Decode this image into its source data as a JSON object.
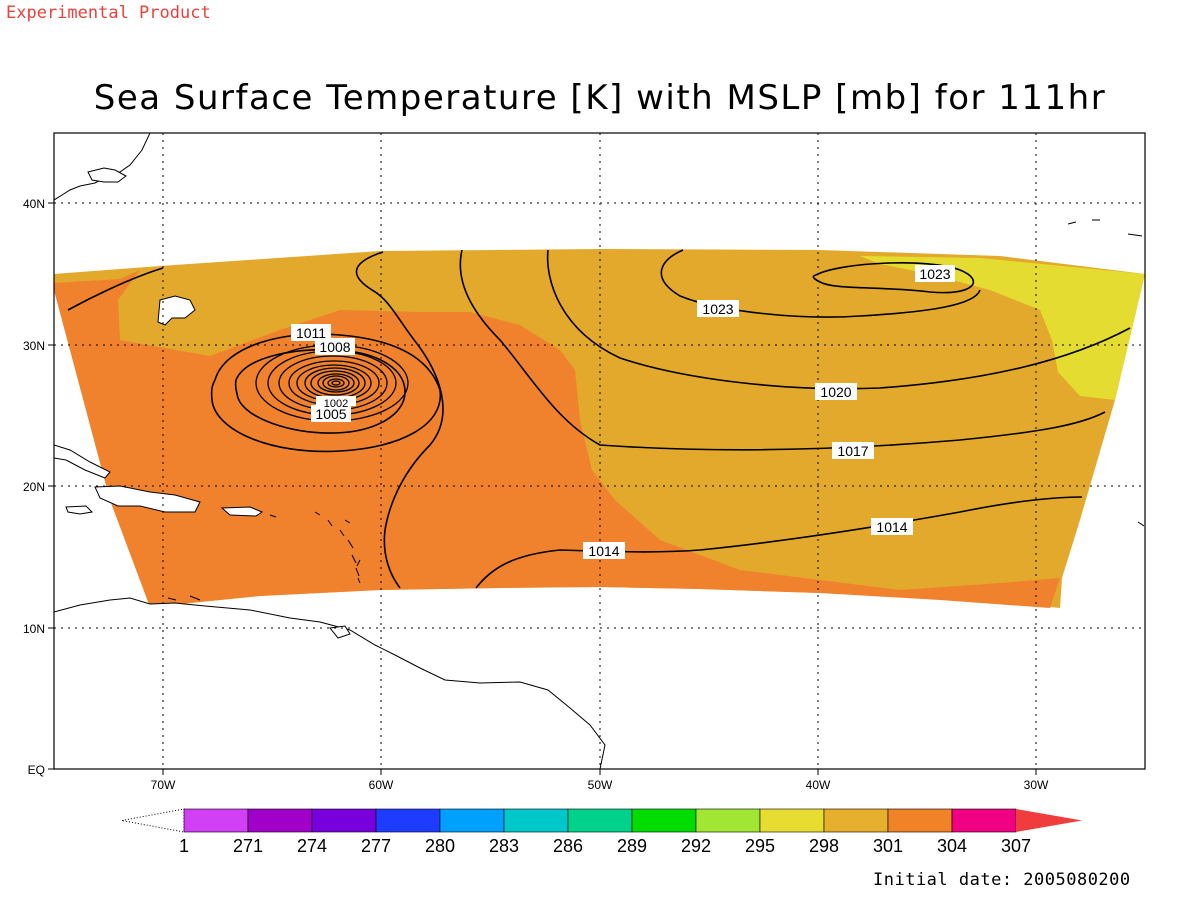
{
  "header": {
    "label": "Experimental Product",
    "label_color": "#e8413c",
    "title": "Sea Surface Temperature [K] with MSLP [mb] for 111hr"
  },
  "map": {
    "lat_ticks": [
      "40N",
      "30N",
      "20N",
      "10N",
      "EQ"
    ],
    "lon_ticks": [
      "70W",
      "60W",
      "50W",
      "40W",
      "30W"
    ],
    "grid": true,
    "fill_colors": {
      "t301": "#e3a92c",
      "t304": "#f0822e",
      "t298": "#e5dc31"
    },
    "isobar_labels": [
      "1011",
      "1008",
      "1005",
      "1002",
      "1023",
      "1023",
      "1020",
      "1017",
      "1014",
      "1014"
    ]
  },
  "colorbar": {
    "colors": [
      "#ffffff",
      "#d240f5",
      "#a000c8",
      "#7800dc",
      "#1e3cff",
      "#00a0ff",
      "#00c8c8",
      "#00d28c",
      "#00dc00",
      "#a0e632",
      "#e6dc32",
      "#e6af2d",
      "#f08228",
      "#f00082",
      "#f03c3c"
    ],
    "labels": [
      "1",
      "271",
      "274",
      "277",
      "280",
      "283",
      "286",
      "289",
      "292",
      "295",
      "298",
      "301",
      "304",
      "307"
    ]
  },
  "footer": {
    "initial_date": "Initial date: 2005080200"
  }
}
